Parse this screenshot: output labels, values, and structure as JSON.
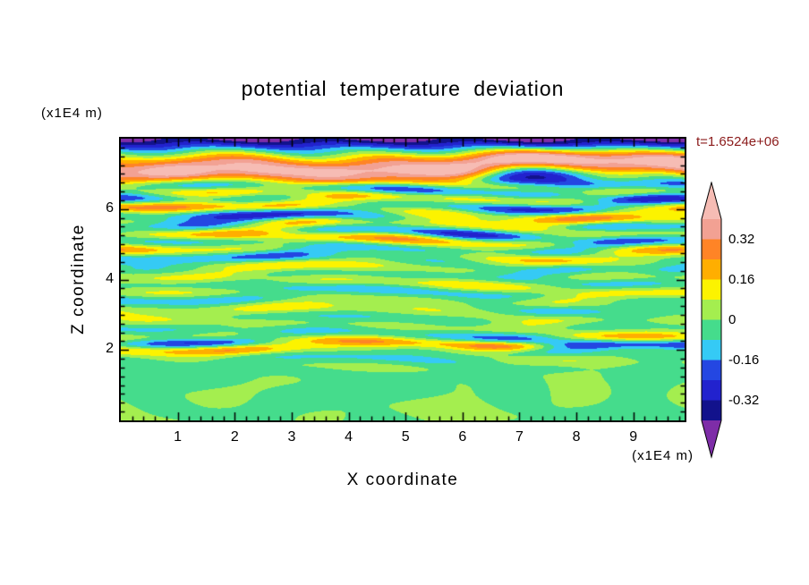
{
  "title": "potential temperature deviation",
  "time_label": "t=1.6524e+06",
  "colors": {
    "time_label": "#8B1A1A",
    "text": "#000000",
    "background": "#FFFFFF"
  },
  "axes": {
    "x_label": "X coordinate",
    "x_unit": "(x1E4 m)",
    "y_label": "Z coordinate",
    "y_unit": "(x1E4 m)"
  },
  "colorbar_labels": [
    "0.32",
    "0.16",
    "0",
    "-0.16",
    "-0.32"
  ],
  "chart_data": {
    "type": "heatmap",
    "title": "potential temperature deviation",
    "xlabel": "X coordinate",
    "x_unit": "(x1E4 m)",
    "ylabel": "Z coordinate",
    "y_unit": "(x1E4 m)",
    "time_annotation": "t=1.6524e+06",
    "x_ticks": [
      1,
      2,
      3,
      4,
      5,
      6,
      7,
      8,
      9
    ],
    "z_ticks": [
      2,
      4,
      6
    ],
    "x_range": [
      0,
      9.9
    ],
    "z_range": [
      0,
      8
    ],
    "contour_levels": [
      -0.4,
      -0.32,
      -0.24,
      -0.16,
      -0.08,
      0,
      0.08,
      0.16,
      0.24,
      0.32,
      0.4
    ],
    "colorbar_level_labels": [
      "0.32",
      "0.16",
      "0",
      "-0.16",
      "-0.32"
    ],
    "band_colors_low_to_high": [
      "#7E2DA8",
      "#12128C",
      "#2222CE",
      "#2447E2",
      "#35CAF5",
      "#45DC8C",
      "#A4EE4F",
      "#FCF300",
      "#FFAE00",
      "#FF8426",
      "#F2A193",
      "#F6BCB4"
    ],
    "legend_position": "right-colorbar-with-pointed-ends",
    "grid": false,
    "field_structure": "Stratified gravity-wave / turbulence field: alternating purple (< -0.4) and salmon (> 0.32) horizontal bands near the top (z > 6.5); thin horizontal multicolor streaks (navy, blue, cyan, yellow, orange, salmon over a green background) for 2 < z < 6.5 with a busy streak cluster near z = 2.1; weak green / yellow-green blobby anomalies near 0 below z = 2."
  }
}
